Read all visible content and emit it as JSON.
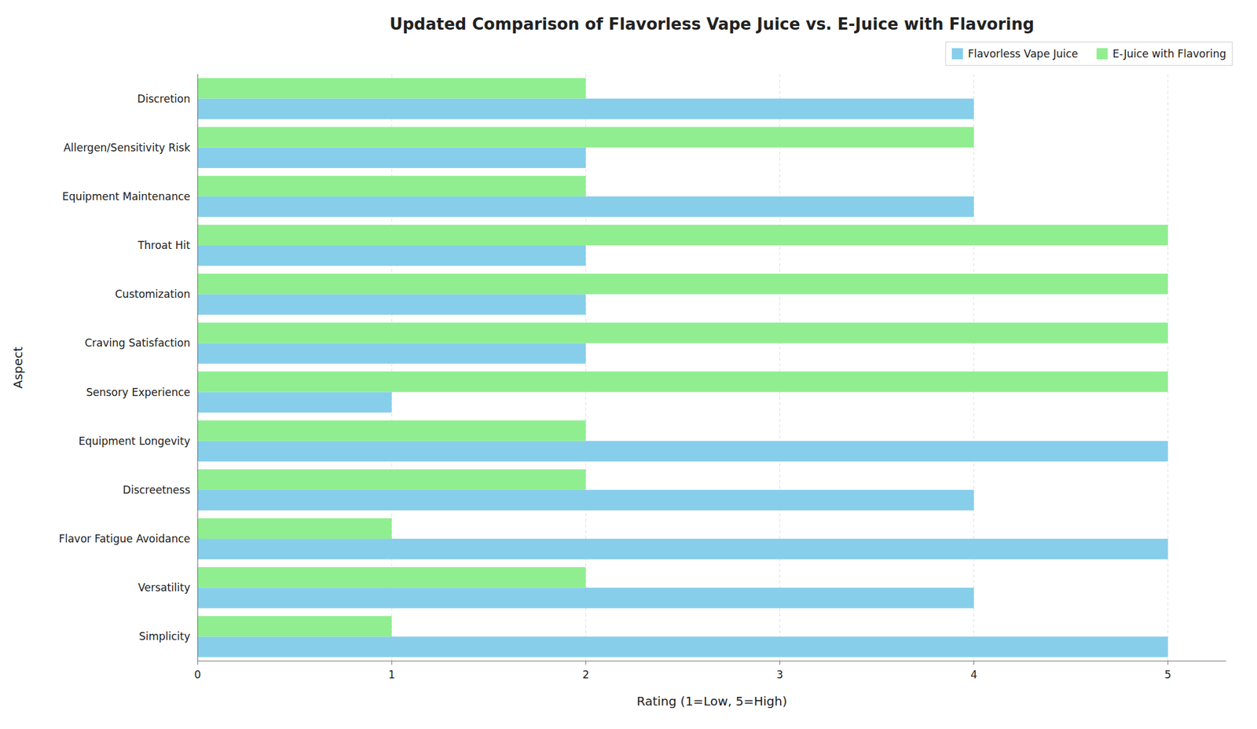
{
  "chart_data": {
    "type": "bar",
    "orientation": "horizontal",
    "title": "Updated Comparison of Flavorless Vape Juice vs. E-Juice with Flavoring",
    "xlabel": "Rating (1=Low, 5=High)",
    "ylabel": "Aspect",
    "categories": [
      "Simplicity",
      "Versatility",
      "Flavor Fatigue Avoidance",
      "Discreetness",
      "Equipment Longevity",
      "Sensory Experience",
      "Craving Satisfaction",
      "Customization",
      "Throat Hit",
      "Equipment Maintenance",
      "Allergen/Sensitivity Risk",
      "Discretion"
    ],
    "series": [
      {
        "name": "Flavorless Vape Juice",
        "color": "#87CEEB",
        "values": [
          5,
          4,
          5,
          4,
          5,
          1,
          2,
          2,
          2,
          4,
          2,
          4
        ]
      },
      {
        "name": "E-Juice with Flavoring",
        "color": "#90EE90",
        "values": [
          1,
          2,
          1,
          2,
          2,
          5,
          5,
          5,
          5,
          2,
          4,
          2
        ]
      }
    ],
    "xlim": [
      0,
      5.3
    ],
    "xticks": [
      0,
      1,
      2,
      3,
      4,
      5
    ],
    "grid": true,
    "legend": "upper right"
  }
}
